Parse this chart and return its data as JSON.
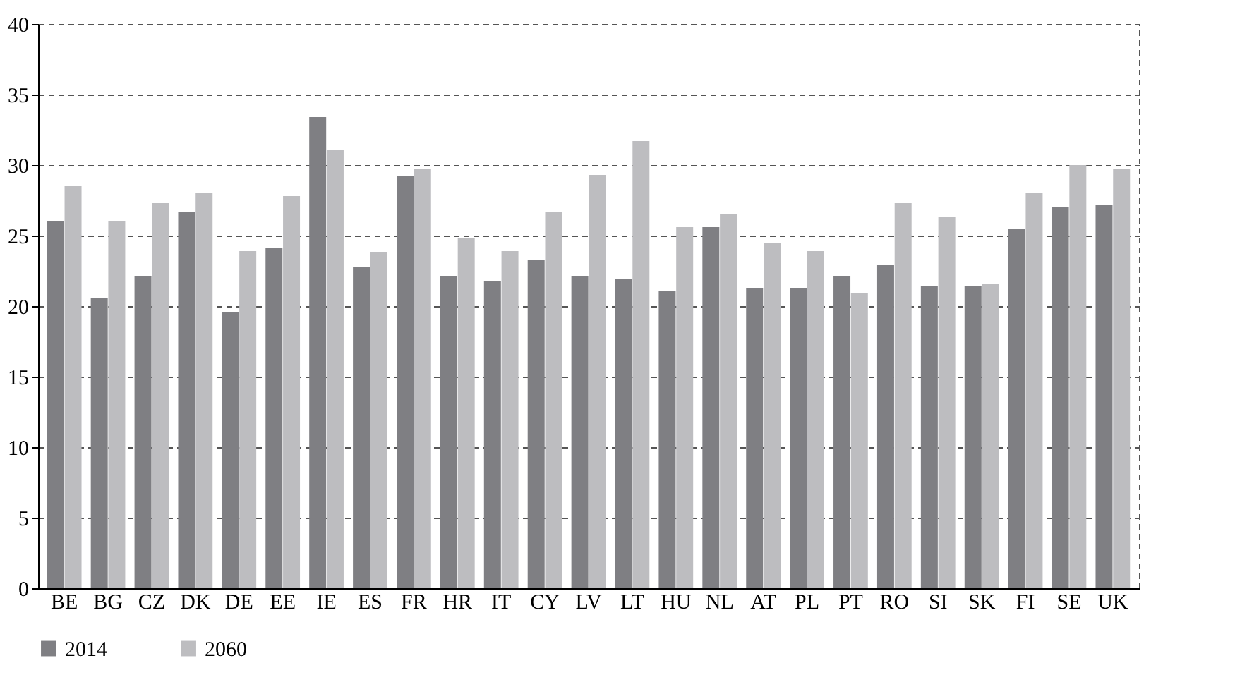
{
  "chart_data": {
    "type": "bar",
    "categories": [
      "BE",
      "BG",
      "CZ",
      "DK",
      "DE",
      "EE",
      "IE",
      "ES",
      "FR",
      "HR",
      "IT",
      "CY",
      "LV",
      "LT",
      "HU",
      "NL",
      "AT",
      "PL",
      "PT",
      "RO",
      "SI",
      "SK",
      "FI",
      "SE",
      "UK"
    ],
    "series": [
      {
        "name": "2014",
        "color": "#7f7f83",
        "values": [
          26.0,
          20.6,
          22.1,
          26.7,
          19.6,
          24.1,
          33.4,
          22.8,
          29.2,
          22.1,
          21.8,
          23.3,
          22.1,
          21.9,
          21.1,
          25.6,
          21.3,
          21.3,
          22.1,
          22.9,
          21.4,
          21.4,
          25.5,
          27.0,
          27.2
        ]
      },
      {
        "name": "2060",
        "color": "#bdbdc0",
        "values": [
          28.5,
          26.0,
          27.3,
          28.0,
          23.9,
          27.8,
          31.1,
          23.8,
          29.7,
          24.8,
          23.9,
          26.7,
          29.3,
          31.7,
          25.6,
          26.5,
          24.5,
          23.9,
          20.9,
          27.3,
          26.3,
          21.6,
          28.0,
          30.0,
          29.7
        ]
      }
    ],
    "ylim": [
      0,
      40
    ],
    "yticks": [
      0,
      5,
      10,
      15,
      20,
      25,
      30,
      35,
      40
    ],
    "grid": "y",
    "legend": "bottom"
  }
}
